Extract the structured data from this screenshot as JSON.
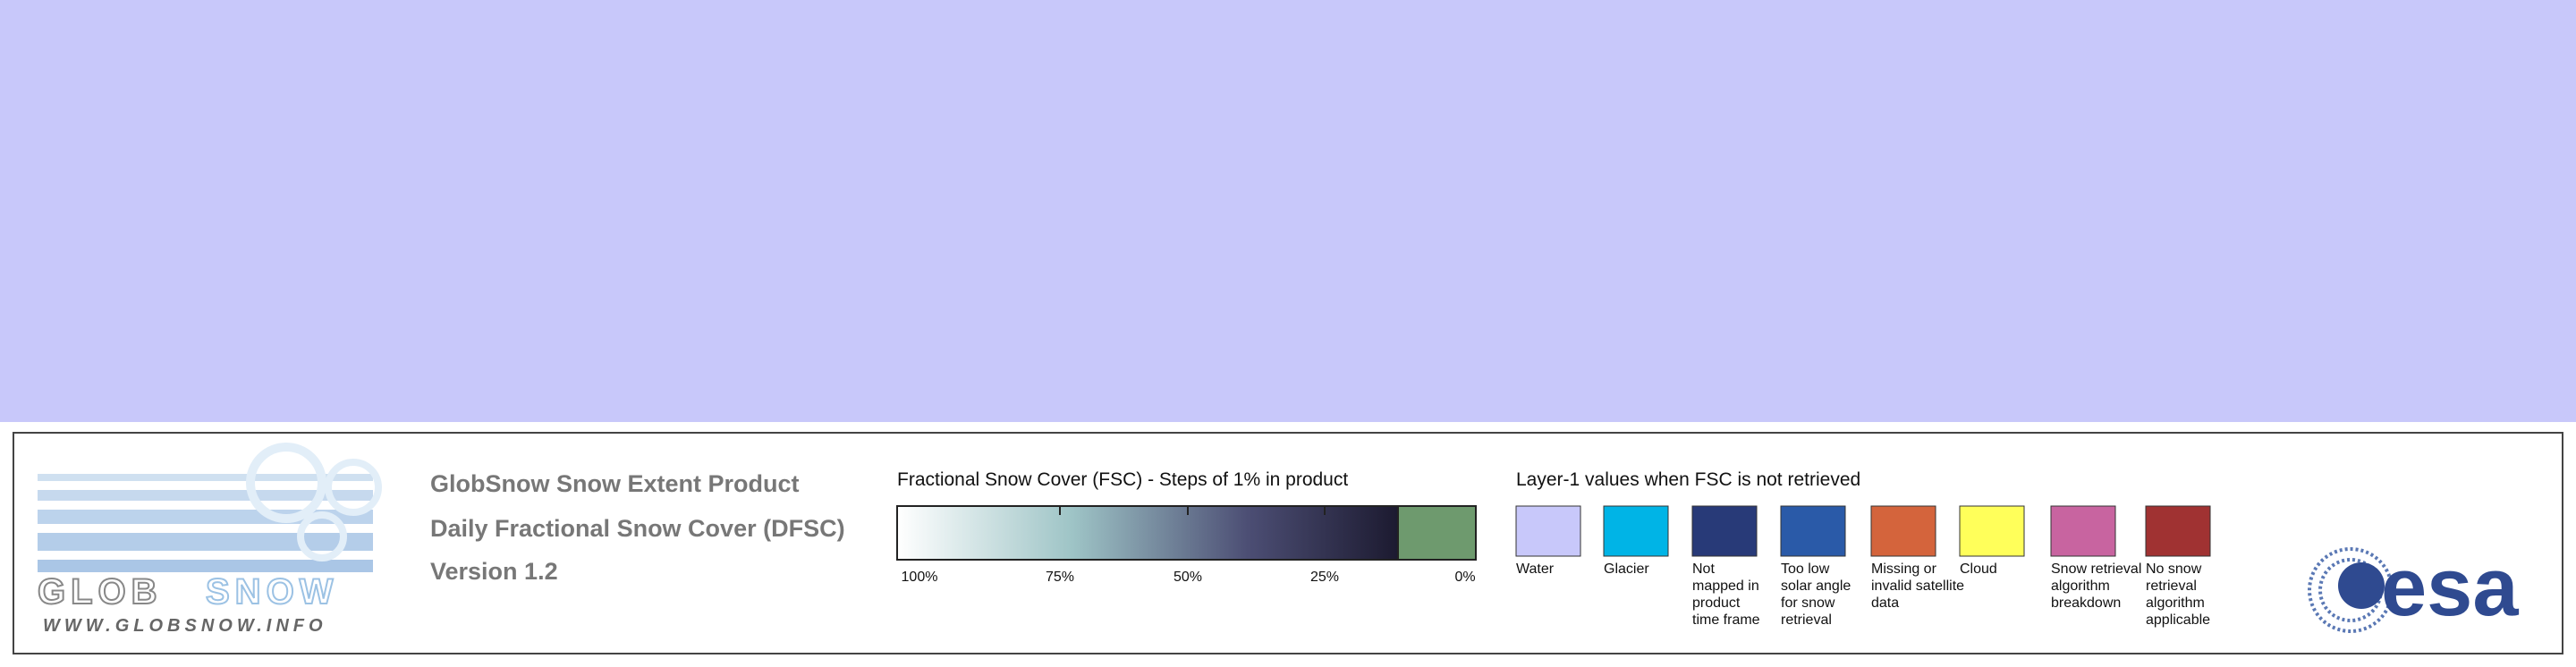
{
  "legend": {
    "product_lines": [
      "GlobSnow Snow Extent Product",
      "Daily Fractional Snow Cover (DFSC)",
      "Version 1.2"
    ],
    "fsc": {
      "title": "Fractional Snow Cover (FSC) - Steps of 1% in product",
      "tick_labels": [
        "100%",
        "75%",
        "50%",
        "25%",
        "0%"
      ]
    },
    "layer1": {
      "title": "Layer-1 values when FSC is not retrieved",
      "items": [
        {
          "color": "#c8c8fa",
          "lines": [
            "Water"
          ]
        },
        {
          "color": "#00b4e6",
          "lines": [
            "Glacier"
          ]
        },
        {
          "color": "#283a78",
          "lines": [
            "Not",
            "mapped in",
            "product",
            "time frame"
          ]
        },
        {
          "color": "#2a5aa8",
          "lines": [
            "Too low",
            "solar angle",
            "for snow",
            "retrieval"
          ]
        },
        {
          "color": "#d4643c",
          "lines": [
            "Missing or",
            "invalid satellite",
            "data"
          ]
        },
        {
          "color": "#ffff5a",
          "lines": [
            "Cloud"
          ]
        },
        {
          "color": "#c864a0",
          "lines": [
            "Snow retrieval",
            "algorithm",
            "breakdown"
          ]
        },
        {
          "color": "#a03232",
          "lines": [
            "No snow",
            "retrieval",
            "algorithm",
            "applicable"
          ]
        }
      ]
    }
  },
  "logo": {
    "name_parts": [
      "GLOB",
      "SNOW"
    ],
    "url": "WWW.GLOBSNOW.INFO"
  },
  "esa": "esa"
}
